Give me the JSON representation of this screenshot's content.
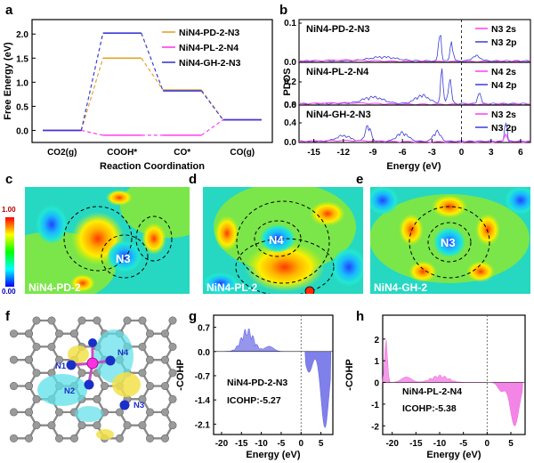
{
  "panels": {
    "a": {
      "letter": "a",
      "ylabel": "Free Energy (eV)",
      "xlabel": "Reaction Coordination",
      "legend": [
        "NiN4-PD-2-N3",
        "NiN4-PL-2-N4",
        "NiN4-GH-2-N3"
      ],
      "colors": [
        "#e6a22a",
        "#ff3df0",
        "#3b3bd8"
      ]
    },
    "b": {
      "letter": "b",
      "ylabel": "PDOS",
      "xlabel": "Energy (eV)",
      "sub_titles": [
        "NiN4-PD-2-N3",
        "NiN4-PL-2-N4",
        "NiN4-GH-2-N3"
      ],
      "legends": [
        [
          "N3 2s",
          "N3 2p"
        ],
        [
          "N4 2s",
          "N4 2p"
        ],
        [
          "N3 2s",
          "N3 2p"
        ]
      ]
    },
    "c": {
      "letter": "c",
      "colorbar_top": "1.00",
      "colorbar_bottom": "0.00",
      "atom": "N3",
      "caption": "NiN4-PD-2"
    },
    "d": {
      "letter": "d",
      "atom": "N4",
      "caption": "NiN4-PL-2"
    },
    "e": {
      "letter": "e",
      "atom": "N3",
      "caption": "NiN4-GH-2"
    },
    "f": {
      "letter": "f",
      "atoms": [
        "N1",
        "N4",
        "N2",
        "N3"
      ]
    },
    "g": {
      "letter": "g",
      "ylabel": "-COHP",
      "xlabel": "Energy (eV)",
      "annotation": "NiN4-PD-2-N3",
      "icohp": "ICOHP:-5.27"
    },
    "h": {
      "letter": "h",
      "ylabel": "-COHP",
      "xlabel": "Energy (eV)",
      "annotation": "NiN4-PL-2-N4",
      "icohp": "ICOHP:-5.38"
    }
  },
  "chart_data": [
    {
      "type": "line",
      "panel": "a",
      "categories": [
        "CO2(g)",
        "COOH*",
        "CO*",
        "CO(g)"
      ],
      "series": [
        {
          "name": "NiN4-PD-2-N3",
          "values": [
            0,
            1.5,
            0.84,
            0.22
          ]
        },
        {
          "name": "NiN4-PL-2-N4",
          "values": [
            0,
            -0.1,
            -0.1,
            0.22
          ]
        },
        {
          "name": "NiN4-GH-2-N3",
          "values": [
            0,
            2.02,
            0.82,
            0.22
          ]
        }
      ],
      "ylabel": "Free Energy (eV)",
      "xlabel": "Reaction Coordination",
      "ylim": [
        -0.25,
        2.3
      ],
      "yticks": [
        "0.0",
        "0.5",
        "1.0",
        "1.5",
        "2.0"
      ]
    },
    {
      "type": "line",
      "panel": "b",
      "xlabel": "Energy (eV)",
      "ylabel": "PDOS",
      "xlim": [
        -16.5,
        7
      ],
      "xticks": [
        "-15",
        "-12",
        "-9",
        "-6",
        "-3",
        "0",
        "3",
        "6"
      ],
      "subplots": [
        {
          "title": "NiN4-PD-2-N3",
          "yticks": [
            "0.0",
            "0.1"
          ]
        },
        {
          "title": "NiN4-PL-2-N4",
          "yticks": [
            "0.0",
            "0.2"
          ]
        },
        {
          "title": "NiN4-GH-2-N3",
          "yticks": [
            "0.0",
            "0.4",
            "0.8"
          ]
        }
      ]
    },
    {
      "type": "bar",
      "panel": "g",
      "xlabel": "Energy (eV)",
      "ylabel": "-COHP",
      "xlim": [
        -22,
        8
      ],
      "ylim": [
        -2.4,
        1.05
      ],
      "xticks": [
        "-20",
        "-15",
        "-10",
        "-5",
        "0",
        "5"
      ],
      "yticks": [
        "0.7",
        "0.0",
        "-0.7",
        "-1.4",
        "-2.1"
      ]
    },
    {
      "type": "bar",
      "panel": "h",
      "xlabel": "Energy (eV)",
      "ylabel": "-COHP",
      "xlim": [
        -22,
        8
      ],
      "ylim": [
        -2.4,
        3.1
      ],
      "xticks": [
        "-20",
        "-15",
        "-10",
        "-5",
        "0",
        "5"
      ],
      "yticks": [
        "2",
        "1",
        "0",
        "-1",
        "-2"
      ]
    }
  ]
}
